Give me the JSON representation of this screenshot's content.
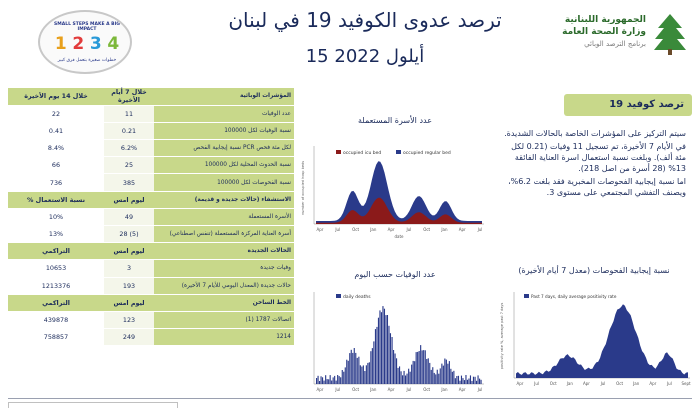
{
  "header": {
    "title": "ترصد عدوى الكوفيد 19 في لبنان",
    "date": "15 أيلول 2022",
    "ministry_line1": "الجمهورية اللبنانية",
    "ministry_line2": "وزارة الصحة العامة",
    "ministry_line3": "برنامج الترصد الوبائي",
    "logo_slogan_top": "SMALL STEPS MAKE A BIG IMPACT",
    "logo_digits": [
      "1",
      "2",
      "3",
      "4"
    ],
    "logo_slogan_bottom": "خطوات صغيرة بتعمل فرق كبير"
  },
  "table": {
    "header": {
      "indicator": "المؤشرات الوبائية",
      "col1": "خلال 7 أيام الأخيرة",
      "col2": "خلال 14 يوم الأخيرة"
    },
    "rows": [
      {
        "indicator": "عدد الوفيات",
        "col1": "11",
        "col2": "22"
      },
      {
        "indicator": "نسبة الوفيات لكل 100000",
        "col1": "0.21",
        "col2": "0.41"
      },
      {
        "indicator": "نسبة إيجابية الفحص PCR لكل مئة فحص",
        "col1": "6.2%",
        "col2": "8.4%"
      },
      {
        "indicator": "نسبة الحدوث المحلية لكل 100000",
        "col1": "25",
        "col2": "66"
      },
      {
        "indicator": "نسبة الفحوصات لكل 100000",
        "col1": "385",
        "col2": "736"
      }
    ],
    "hospital_header": {
      "indicator": "الاستشفاء (حالات جديدة و قديمة)",
      "col1": "ليوم امس",
      "col2": "% نسبة الاستعمال"
    },
    "hospital_rows": [
      {
        "indicator": "الأسرة المستعملة",
        "col1": "49",
        "col2": "10%"
      },
      {
        "indicator": "أسرة العناية المركزة المستعملة (تنفس اصطناعي)",
        "col1": "28 (5)",
        "col2": "13%"
      }
    ],
    "cases_header": {
      "indicator": "الحالات الجديدة",
      "col1": "ليوم امس",
      "col2": "التراكمي"
    },
    "cases_rows": [
      {
        "indicator": "وفيات جديدة",
        "col1": "3",
        "col2": "10653"
      },
      {
        "indicator": "حالات جديدة (المعدل اليومي للأيام 7 الأخيرة)",
        "col1": "193",
        "col2": "1213376"
      }
    ],
    "vaccine_header": {
      "indicator": "الخط الساخن",
      "col1": "ليوم امس",
      "col2": "التراكمي"
    },
    "vaccine_rows": [
      {
        "indicator": "اتصالات 1787 (1)",
        "col1": "123",
        "col2": "439878"
      },
      {
        "indicator": "1214",
        "col1": "249",
        "col2": "758857"
      }
    ]
  },
  "charts": {
    "beds": {
      "title": "عدد الأسرة المستعملة",
      "legend_icu": "occupied icu bed",
      "legend_regular": "occupied regular bed",
      "ylabel": "number of occupied hosp beds",
      "xlabel": "date",
      "x_ticks": [
        "Apr",
        "Jul",
        "Oct",
        "Jan",
        "Apr",
        "Jul",
        "Oct",
        "Jan",
        "Apr",
        "Jul"
      ],
      "colors": {
        "icu": "#8b1a1a",
        "regular": "#2a3a8a"
      }
    },
    "deaths": {
      "title": "عدد الوفيات حسب اليوم",
      "legend": "daily deaths",
      "x_ticks": [
        "Apr",
        "Jul",
        "Oct",
        "Jan",
        "Apr",
        "Jul",
        "Oct",
        "Jan",
        "Apr",
        "Jul"
      ],
      "colors": {
        "bars": "#2a3a8a"
      }
    },
    "positivity": {
      "title": "نسبة إيجابية الفحوصات (معدل 7 أيام الأخيرة)",
      "legend": "Past 7 days, daily average positivity rate",
      "ylabel": "positivity rate %, average past 7 days",
      "x_ticks": [
        "Apr",
        "Jul",
        "Oct",
        "Jan",
        "Apr",
        "Jul",
        "Oct",
        "Jan",
        "Apr",
        "Jul",
        "Sept"
      ],
      "colors": {
        "area": "#2a3a8a"
      }
    }
  },
  "covid_box": {
    "title": "ترصد كوفيد 19",
    "paragraphs": [
      "سيتم التركيز على المؤشرات الخاصة بالحالات الشديدة.",
      "في الأيام 7 الأخيرة، تم تسجيل 11 وفيات (0.21 لكل مئة ألف). وبلغت نسبة استعمال اسرة العناية الفائقة 13% (28 أسرة من اصل 218).",
      "اما نسبة إيجابية الفحوصات المخبرية فقد بلغت 6.2%، ويصنف التفشي المجتمعي على مستوى 3."
    ]
  }
}
